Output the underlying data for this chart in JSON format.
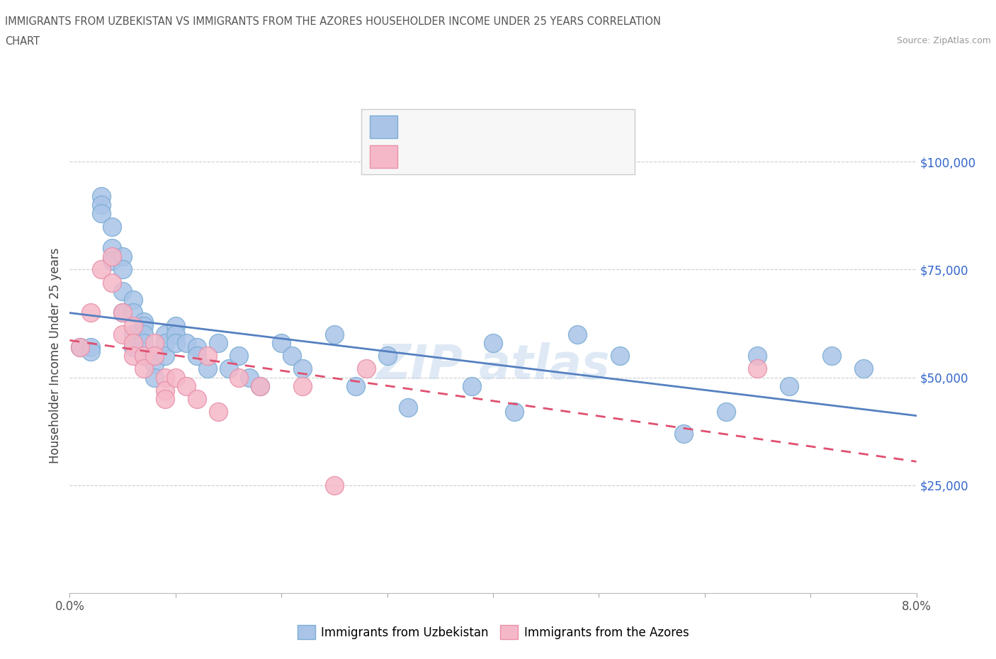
{
  "title_line1": "IMMIGRANTS FROM UZBEKISTAN VS IMMIGRANTS FROM THE AZORES HOUSEHOLDER INCOME UNDER 25 YEARS CORRELATION",
  "title_line2": "CHART",
  "source": "Source: ZipAtlas.com",
  "ylabel": "Householder Income Under 25 years",
  "xlim": [
    0.0,
    0.08
  ],
  "ylim": [
    0,
    110000
  ],
  "xticks": [
    0.0,
    0.01,
    0.02,
    0.03,
    0.04,
    0.05,
    0.06,
    0.07,
    0.08
  ],
  "xticklabels": [
    "0.0%",
    "",
    "",
    "",
    "",
    "",
    "",
    "",
    "8.0%"
  ],
  "yticks": [
    0,
    25000,
    50000,
    75000,
    100000
  ],
  "yticklabels": [
    "",
    "$25,000",
    "$50,000",
    "$75,000",
    "$100,000"
  ],
  "uzbekistan_color": "#aac4e8",
  "azores_color": "#f5b8c8",
  "uzbekistan_edge": "#7aadd4",
  "azores_edge": "#e890aa",
  "trend_uzbekistan": "#5580c0",
  "trend_azores": "#e05070",
  "grid_color": "#cccccc",
  "uzbekistan_x": [
    0.001,
    0.002,
    0.002,
    0.003,
    0.003,
    0.003,
    0.004,
    0.004,
    0.004,
    0.005,
    0.005,
    0.005,
    0.005,
    0.006,
    0.006,
    0.006,
    0.006,
    0.007,
    0.007,
    0.007,
    0.007,
    0.007,
    0.008,
    0.008,
    0.008,
    0.009,
    0.009,
    0.009,
    0.01,
    0.01,
    0.01,
    0.011,
    0.012,
    0.012,
    0.013,
    0.014,
    0.015,
    0.016,
    0.017,
    0.018,
    0.02,
    0.021,
    0.022,
    0.025,
    0.027,
    0.03,
    0.032,
    0.038,
    0.04,
    0.042,
    0.048,
    0.052,
    0.058,
    0.062,
    0.065,
    0.068,
    0.072,
    0.075
  ],
  "uzbekistan_y": [
    57000,
    57000,
    56000,
    92000,
    90000,
    88000,
    85000,
    80000,
    77000,
    78000,
    75000,
    70000,
    65000,
    68000,
    65000,
    60000,
    57000,
    63000,
    62000,
    60000,
    58000,
    55000,
    55000,
    53000,
    50000,
    60000,
    58000,
    55000,
    62000,
    60000,
    58000,
    58000,
    57000,
    55000,
    52000,
    58000,
    52000,
    55000,
    50000,
    48000,
    58000,
    55000,
    52000,
    60000,
    48000,
    55000,
    43000,
    48000,
    58000,
    42000,
    60000,
    55000,
    37000,
    42000,
    55000,
    48000,
    55000,
    52000
  ],
  "azores_x": [
    0.001,
    0.002,
    0.003,
    0.004,
    0.004,
    0.005,
    0.005,
    0.006,
    0.006,
    0.006,
    0.007,
    0.007,
    0.008,
    0.008,
    0.009,
    0.009,
    0.009,
    0.01,
    0.011,
    0.012,
    0.013,
    0.014,
    0.016,
    0.018,
    0.022,
    0.025,
    0.028,
    0.065
  ],
  "azores_y": [
    57000,
    65000,
    75000,
    78000,
    72000,
    65000,
    60000,
    62000,
    58000,
    55000,
    55000,
    52000,
    58000,
    55000,
    50000,
    47000,
    45000,
    50000,
    48000,
    45000,
    55000,
    42000,
    50000,
    48000,
    48000,
    25000,
    52000,
    52000
  ]
}
